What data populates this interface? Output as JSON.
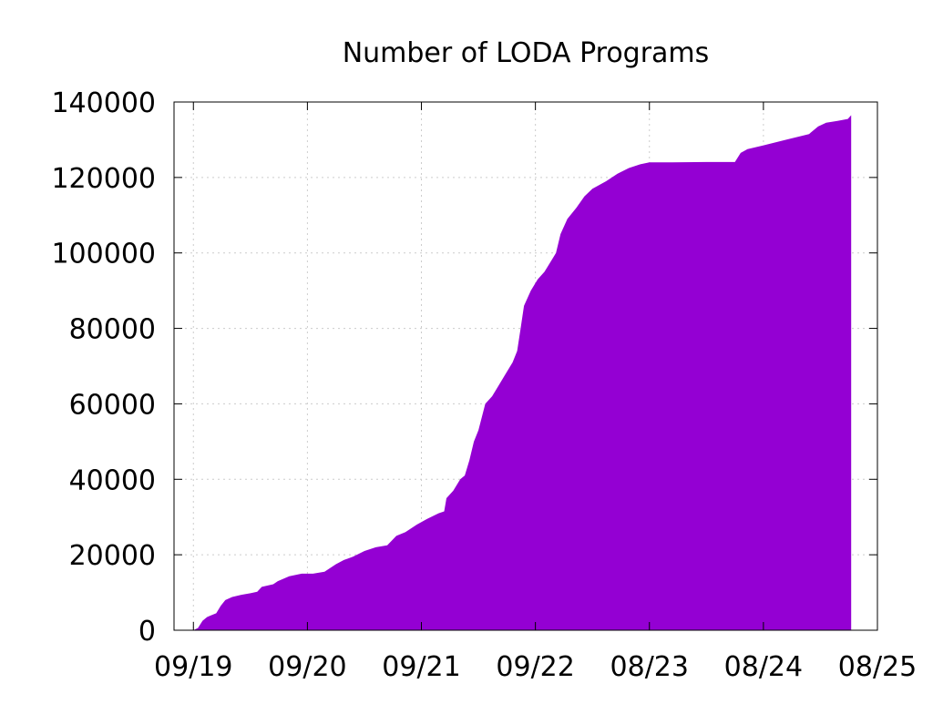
{
  "chart_data": {
    "type": "area",
    "title": "Number of LODA Programs",
    "xlabel": "",
    "ylabel": "",
    "ylim": [
      0,
      140000
    ],
    "yticks": [
      0,
      20000,
      40000,
      60000,
      80000,
      100000,
      120000,
      140000
    ],
    "xticks": [
      "09/19",
      "09/20",
      "09/21",
      "09/22",
      "08/23",
      "08/24",
      "08/25"
    ],
    "grid": true,
    "legend": "none",
    "colors": {
      "fill": "#9400D3",
      "grid": "#cccccc",
      "axis": "#000000"
    },
    "series": [
      {
        "values": [
          [
            0.0,
            0
          ],
          [
            0.04,
            600
          ],
          [
            0.08,
            2500
          ],
          [
            0.12,
            3500
          ],
          [
            0.16,
            4000
          ],
          [
            0.2,
            4500
          ],
          [
            0.24,
            6500
          ],
          [
            0.28,
            8000
          ],
          [
            0.34,
            8800
          ],
          [
            0.42,
            9400
          ],
          [
            0.5,
            9800
          ],
          [
            0.56,
            10200
          ],
          [
            0.6,
            11500
          ],
          [
            0.7,
            12200
          ],
          [
            0.74,
            13000
          ],
          [
            0.84,
            14300
          ],
          [
            0.95,
            15000
          ],
          [
            1.05,
            15000
          ],
          [
            1.15,
            15500
          ],
          [
            1.25,
            17500
          ],
          [
            1.32,
            18600
          ],
          [
            1.4,
            19500
          ],
          [
            1.5,
            21000
          ],
          [
            1.6,
            22000
          ],
          [
            1.7,
            22500
          ],
          [
            1.78,
            25000
          ],
          [
            1.86,
            26000
          ],
          [
            1.96,
            28000
          ],
          [
            2.05,
            29500
          ],
          [
            2.15,
            31000
          ],
          [
            2.2,
            31500
          ],
          [
            2.22,
            35000
          ],
          [
            2.28,
            37000
          ],
          [
            2.34,
            40000
          ],
          [
            2.38,
            41000
          ],
          [
            2.42,
            45000
          ],
          [
            2.46,
            50000
          ],
          [
            2.5,
            53000
          ],
          [
            2.56,
            60000
          ],
          [
            2.62,
            62000
          ],
          [
            2.68,
            65000
          ],
          [
            2.74,
            68000
          ],
          [
            2.8,
            71000
          ],
          [
            2.84,
            74000
          ],
          [
            2.87,
            80000
          ],
          [
            2.9,
            86000
          ],
          [
            2.96,
            90000
          ],
          [
            3.02,
            93000
          ],
          [
            3.08,
            95000
          ],
          [
            3.14,
            98000
          ],
          [
            3.18,
            100000
          ],
          [
            3.22,
            105000
          ],
          [
            3.28,
            109000
          ],
          [
            3.36,
            112000
          ],
          [
            3.43,
            115000
          ],
          [
            3.5,
            117000
          ],
          [
            3.62,
            119000
          ],
          [
            3.72,
            121000
          ],
          [
            3.82,
            122500
          ],
          [
            3.92,
            123500
          ],
          [
            4.0,
            124000
          ],
          [
            4.2,
            124000
          ],
          [
            4.5,
            124100
          ],
          [
            4.75,
            124100
          ],
          [
            4.8,
            126500
          ],
          [
            4.86,
            127500
          ],
          [
            5.0,
            128500
          ],
          [
            5.2,
            130000
          ],
          [
            5.4,
            131500
          ],
          [
            5.48,
            133500
          ],
          [
            5.55,
            134500
          ],
          [
            5.65,
            135000
          ],
          [
            5.74,
            135500
          ],
          [
            5.77,
            136500
          ]
        ]
      }
    ]
  }
}
